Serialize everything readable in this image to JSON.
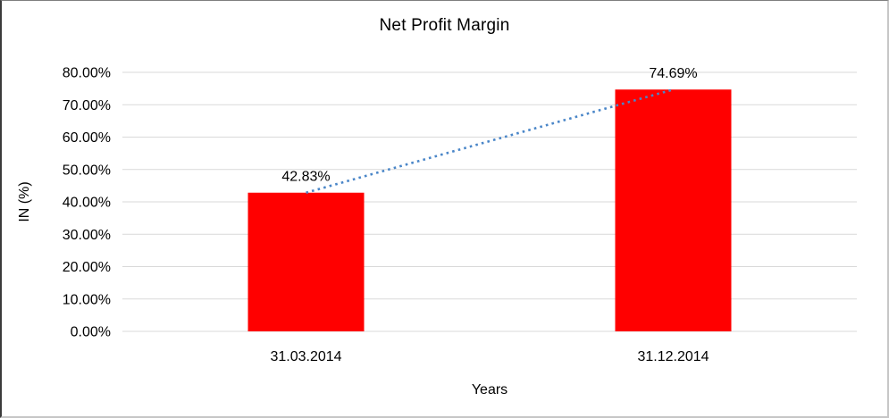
{
  "chart_data": {
    "type": "bar",
    "title": "Net Profit Margin",
    "xlabel": "Years",
    "ylabel": "IN (%)",
    "categories": [
      "31.03.2014",
      "31.12.2014"
    ],
    "series": [
      {
        "name": "Net Profit Margin",
        "values": [
          42.83,
          74.69
        ]
      }
    ],
    "data_labels": [
      "42.83%",
      "74.69%"
    ],
    "ylim": [
      0,
      80
    ],
    "ytick_step": 10,
    "ytick_labels": [
      "0.00%",
      "10.00%",
      "20.00%",
      "30.00%",
      "40.00%",
      "50.00%",
      "60.00%",
      "70.00%",
      "80.00%"
    ],
    "grid": "horizontal",
    "legend": "none",
    "trendline": {
      "type": "linear",
      "style": "dotted",
      "color": "#4A86C8"
    },
    "colors": {
      "bar": "#FF0000",
      "trendline": "#4A86C8",
      "gridline": "#D9D9D9",
      "text": "#000000",
      "background": "#FFFFFF"
    }
  }
}
